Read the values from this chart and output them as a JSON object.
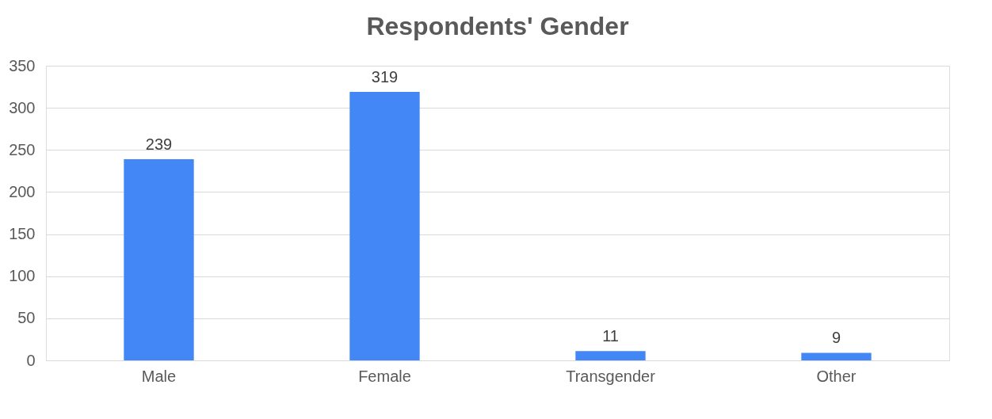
{
  "chart_data": {
    "type": "bar",
    "title": "Respondents' Gender",
    "categories": [
      "Male",
      "Female",
      "Transgender",
      "Other"
    ],
    "values": [
      239,
      319,
      11,
      9
    ],
    "color": "#4287f5",
    "ylim": [
      0,
      350
    ],
    "yticks": [
      0,
      50,
      100,
      150,
      200,
      250,
      300,
      350
    ],
    "grid": "y",
    "data_labels": true
  }
}
